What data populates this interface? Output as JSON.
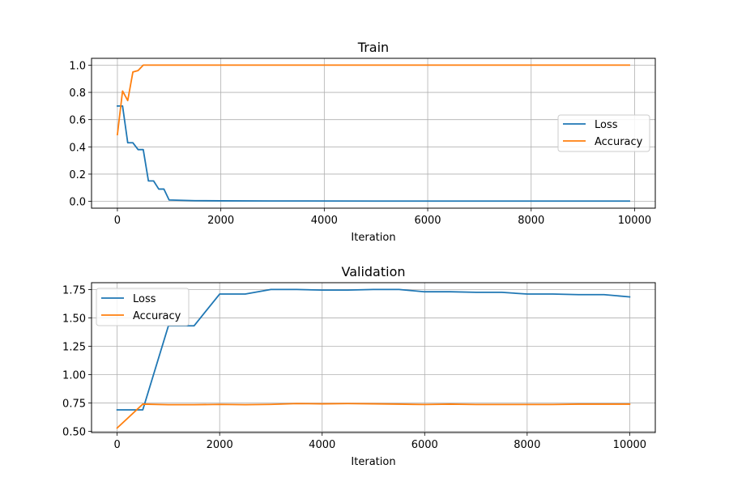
{
  "chart_data": [
    {
      "type": "line",
      "title": "Train",
      "xlabel": "Iteration",
      "ylabel": "",
      "xlim": [
        -500,
        10400
      ],
      "ylim": [
        -0.05,
        1.05
      ],
      "xticks": [
        0,
        2000,
        4000,
        6000,
        8000,
        10000
      ],
      "yticks": [
        0.0,
        0.2,
        0.4,
        0.6,
        0.8,
        1.0
      ],
      "ytick_decimals": 1,
      "grid": true,
      "legend": "center-right",
      "series": [
        {
          "name": "Loss",
          "color": "#1f77b4",
          "points": [
            [
              0,
              0.7
            ],
            [
              50,
              0.7
            ],
            [
              100,
              0.7
            ],
            [
              200,
              0.43
            ],
            [
              300,
              0.43
            ],
            [
              400,
              0.38
            ],
            [
              500,
              0.38
            ],
            [
              600,
              0.15
            ],
            [
              700,
              0.15
            ],
            [
              800,
              0.09
            ],
            [
              900,
              0.09
            ],
            [
              1000,
              0.01
            ],
            [
              1500,
              0.005
            ],
            [
              2000,
              0.004
            ],
            [
              3000,
              0.003
            ],
            [
              5000,
              0.002
            ],
            [
              8000,
              0.002
            ],
            [
              9900,
              0.002
            ]
          ]
        },
        {
          "name": "Accuracy",
          "color": "#ff7f0e",
          "points": [
            [
              0,
              0.49
            ],
            [
              100,
              0.81
            ],
            [
              200,
              0.74
            ],
            [
              300,
              0.95
            ],
            [
              400,
              0.96
            ],
            [
              500,
              1.0
            ],
            [
              1000,
              1.0
            ],
            [
              3000,
              1.0
            ],
            [
              6000,
              1.0
            ],
            [
              9900,
              1.0
            ]
          ]
        }
      ]
    },
    {
      "type": "line",
      "title": "Validation",
      "xlabel": "Iteration",
      "ylabel": "",
      "xlim": [
        -500,
        10500
      ],
      "ylim": [
        0.49,
        1.81
      ],
      "xticks": [
        0,
        2000,
        4000,
        6000,
        8000,
        10000
      ],
      "yticks": [
        0.5,
        0.75,
        1.0,
        1.25,
        1.5,
        1.75
      ],
      "ytick_decimals": 2,
      "grid": true,
      "legend": "top-left",
      "series": [
        {
          "name": "Loss",
          "color": "#1f77b4",
          "points": [
            [
              0,
              0.69
            ],
            [
              500,
              0.69
            ],
            [
              1000,
              1.43
            ],
            [
              1500,
              1.43
            ],
            [
              2000,
              1.71
            ],
            [
              2500,
              1.71
            ],
            [
              3000,
              1.75
            ],
            [
              3500,
              1.75
            ],
            [
              4000,
              1.745
            ],
            [
              4500,
              1.745
            ],
            [
              5000,
              1.75
            ],
            [
              5500,
              1.75
            ],
            [
              6000,
              1.73
            ],
            [
              6500,
              1.73
            ],
            [
              7000,
              1.725
            ],
            [
              7500,
              1.725
            ],
            [
              8000,
              1.71
            ],
            [
              8500,
              1.71
            ],
            [
              9000,
              1.705
            ],
            [
              9500,
              1.705
            ],
            [
              10000,
              1.685
            ]
          ]
        },
        {
          "name": "Accuracy",
          "color": "#ff7f0e",
          "points": [
            [
              0,
              0.53
            ],
            [
              500,
              0.74
            ],
            [
              1000,
              0.735
            ],
            [
              1500,
              0.735
            ],
            [
              2000,
              0.738
            ],
            [
              2500,
              0.735
            ],
            [
              3000,
              0.738
            ],
            [
              3500,
              0.745
            ],
            [
              4000,
              0.743
            ],
            [
              4500,
              0.745
            ],
            [
              5000,
              0.743
            ],
            [
              5500,
              0.74
            ],
            [
              6000,
              0.737
            ],
            [
              6500,
              0.74
            ],
            [
              7000,
              0.737
            ],
            [
              7500,
              0.737
            ],
            [
              8000,
              0.737
            ],
            [
              8500,
              0.737
            ],
            [
              9000,
              0.74
            ],
            [
              9500,
              0.74
            ],
            [
              10000,
              0.74
            ]
          ]
        }
      ]
    }
  ]
}
